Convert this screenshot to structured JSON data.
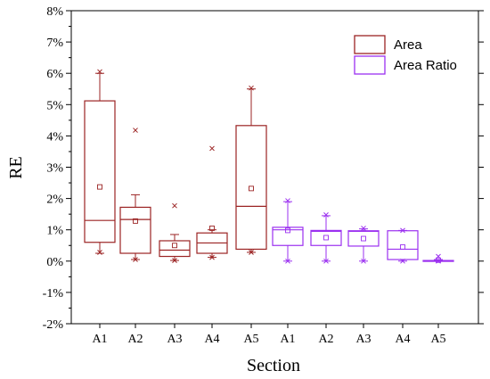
{
  "chart_data": {
    "type": "box",
    "xlabel": "Section",
    "ylabel": "RE",
    "ylim": [
      -2,
      8
    ],
    "y_unit": "%",
    "yticks": [
      -2,
      -1,
      0,
      1,
      2,
      3,
      4,
      5,
      6,
      7,
      8
    ],
    "ytick_labels": [
      "-2%",
      "-1%",
      "0%",
      "1%",
      "2%",
      "3%",
      "4%",
      "5%",
      "6%",
      "7%",
      "8%"
    ],
    "grid": false,
    "legend_position": "top-right",
    "series": [
      {
        "name": "Area",
        "color": "#9B2323",
        "boxes": [
          {
            "label": "A1",
            "min": 0.25,
            "q1": 0.6,
            "median": 1.3,
            "q3": 5.12,
            "max": 6.0,
            "mean": 2.37,
            "outliers_x": [
              6.05,
              0.28
            ]
          },
          {
            "label": "A2",
            "min": 0.05,
            "q1": 0.25,
            "median": 1.33,
            "q3": 1.72,
            "max": 2.12,
            "mean": 1.28,
            "outliers_x": [
              4.18,
              0.05
            ]
          },
          {
            "label": "A3",
            "min": 0.02,
            "q1": 0.15,
            "median": 0.35,
            "q3": 0.65,
            "max": 0.85,
            "mean": 0.5,
            "outliers_x": [
              1.77,
              0.02
            ]
          },
          {
            "label": "A4",
            "min": 0.12,
            "q1": 0.25,
            "median": 0.58,
            "q3": 0.9,
            "max": 1.0,
            "mean": 1.05,
            "outliers_x": [
              3.6,
              0.12
            ]
          },
          {
            "label": "A5",
            "min": 0.28,
            "q1": 0.38,
            "median": 1.75,
            "q3": 4.33,
            "max": 5.5,
            "mean": 2.32,
            "outliers_x": [
              5.53,
              0.28
            ]
          }
        ]
      },
      {
        "name": "Area Ratio",
        "color": "#9B30F0",
        "boxes": [
          {
            "label": "A1",
            "min": 0.0,
            "q1": 0.5,
            "median": 1.0,
            "q3": 1.08,
            "max": 1.9,
            "mean": 0.98,
            "outliers_x": [
              1.93,
              0.0
            ]
          },
          {
            "label": "A2",
            "min": 0.0,
            "q1": 0.5,
            "median": 0.95,
            "q3": 0.98,
            "max": 1.45,
            "mean": 0.75,
            "outliers_x": [
              1.48,
              0.0
            ]
          },
          {
            "label": "A3",
            "min": 0.0,
            "q1": 0.48,
            "median": 0.95,
            "q3": 0.97,
            "max": 1.03,
            "mean": 0.72,
            "outliers_x": [
              1.05,
              0.0
            ]
          },
          {
            "label": "A4",
            "min": 0.0,
            "q1": 0.05,
            "median": 0.38,
            "q3": 0.97,
            "max": 0.98,
            "mean": 0.45,
            "outliers_x": [
              0.98,
              0.0
            ]
          },
          {
            "label": "A5",
            "min": 0.0,
            "q1": 0.0,
            "median": 0.0,
            "q3": 0.02,
            "max": 0.05,
            "mean": 0.03,
            "outliers_x": [
              0.15,
              0.0
            ]
          }
        ]
      }
    ]
  }
}
